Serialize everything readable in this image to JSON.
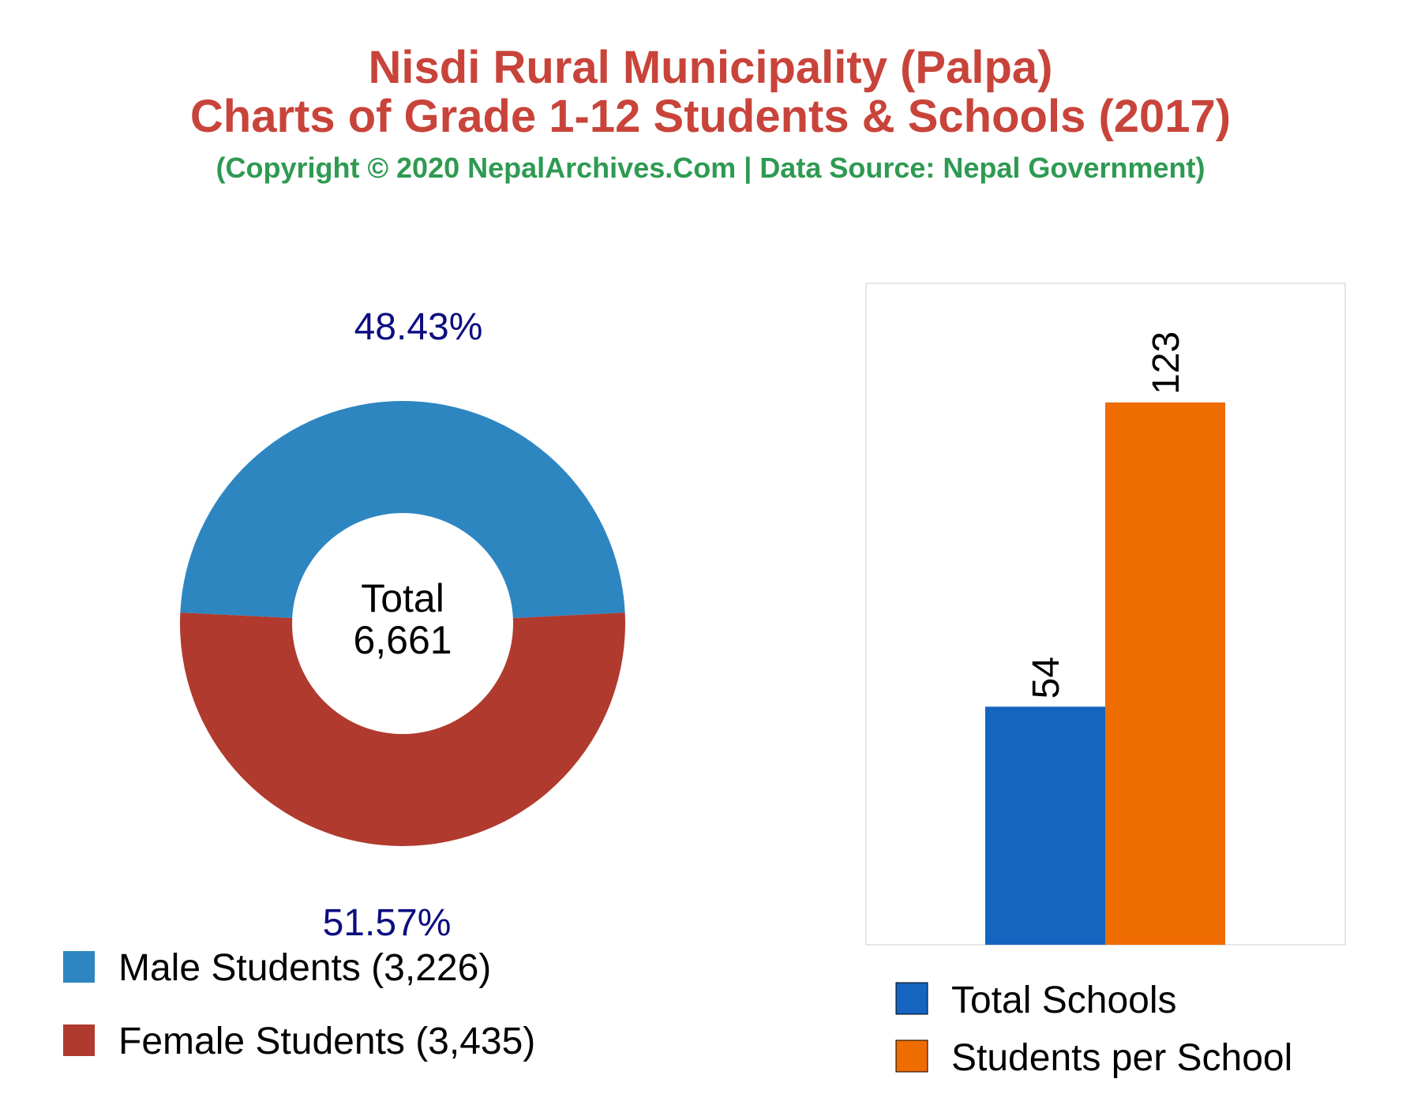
{
  "header": {
    "title_line1": "Nisdi Rural Municipality (Palpa)",
    "title_line2": "Charts of Grade 1-12 Students & Schools (2017)",
    "subtitle": "(Copyright © 2020 NepalArchives.Com | Data Source: Nepal Government)"
  },
  "chart_data": [
    {
      "type": "pie",
      "variant": "donut",
      "center_label": "Total",
      "center_value": "6,661",
      "slices": [
        {
          "label": "Male Students (3,226)",
          "value": 3226,
          "percent_label": "48.43%",
          "color": "#2e86c1"
        },
        {
          "label": "Female Students (3,435)",
          "value": 3435,
          "percent_label": "51.57%",
          "color": "#b03a2e"
        }
      ],
      "legend_position": "bottom-left"
    },
    {
      "type": "bar",
      "categories": [
        "Total Schools",
        "Students per School"
      ],
      "values": [
        54,
        123
      ],
      "value_labels": [
        "54",
        "123"
      ],
      "colors": [
        "#1565c0",
        "#ef6c00"
      ],
      "ylim": [
        0,
        150
      ],
      "grid": false,
      "legend_position": "bottom"
    }
  ]
}
